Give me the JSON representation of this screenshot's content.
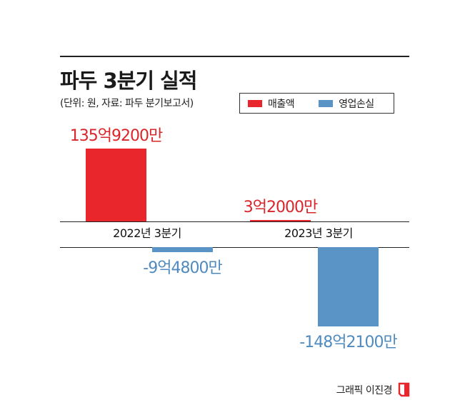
{
  "title": "파두 3분기 실적",
  "subtitle": "(단위: 원, 자료: 파두 분기보고서)",
  "credit": "그래픽 이진경",
  "colors": {
    "revenue": "#e8262b",
    "loss": "#5a93c6",
    "revenue_label": "#d9262b",
    "loss_label": "#4f8bbf"
  },
  "chart_data": {
    "type": "bar",
    "unit": "억원",
    "categories": [
      "2022년 3분기",
      "2023년 3분기"
    ],
    "series": [
      {
        "name": "매출액",
        "values": [
          135.92,
          3.2
        ],
        "labels": [
          "135억9200만",
          "3억2000만"
        ]
      },
      {
        "name": "영업손실",
        "values": [
          -9.48,
          -148.21
        ],
        "labels": [
          "-9억4800만",
          "-148억2100만"
        ]
      }
    ],
    "legend": "top-right",
    "grid": false
  }
}
